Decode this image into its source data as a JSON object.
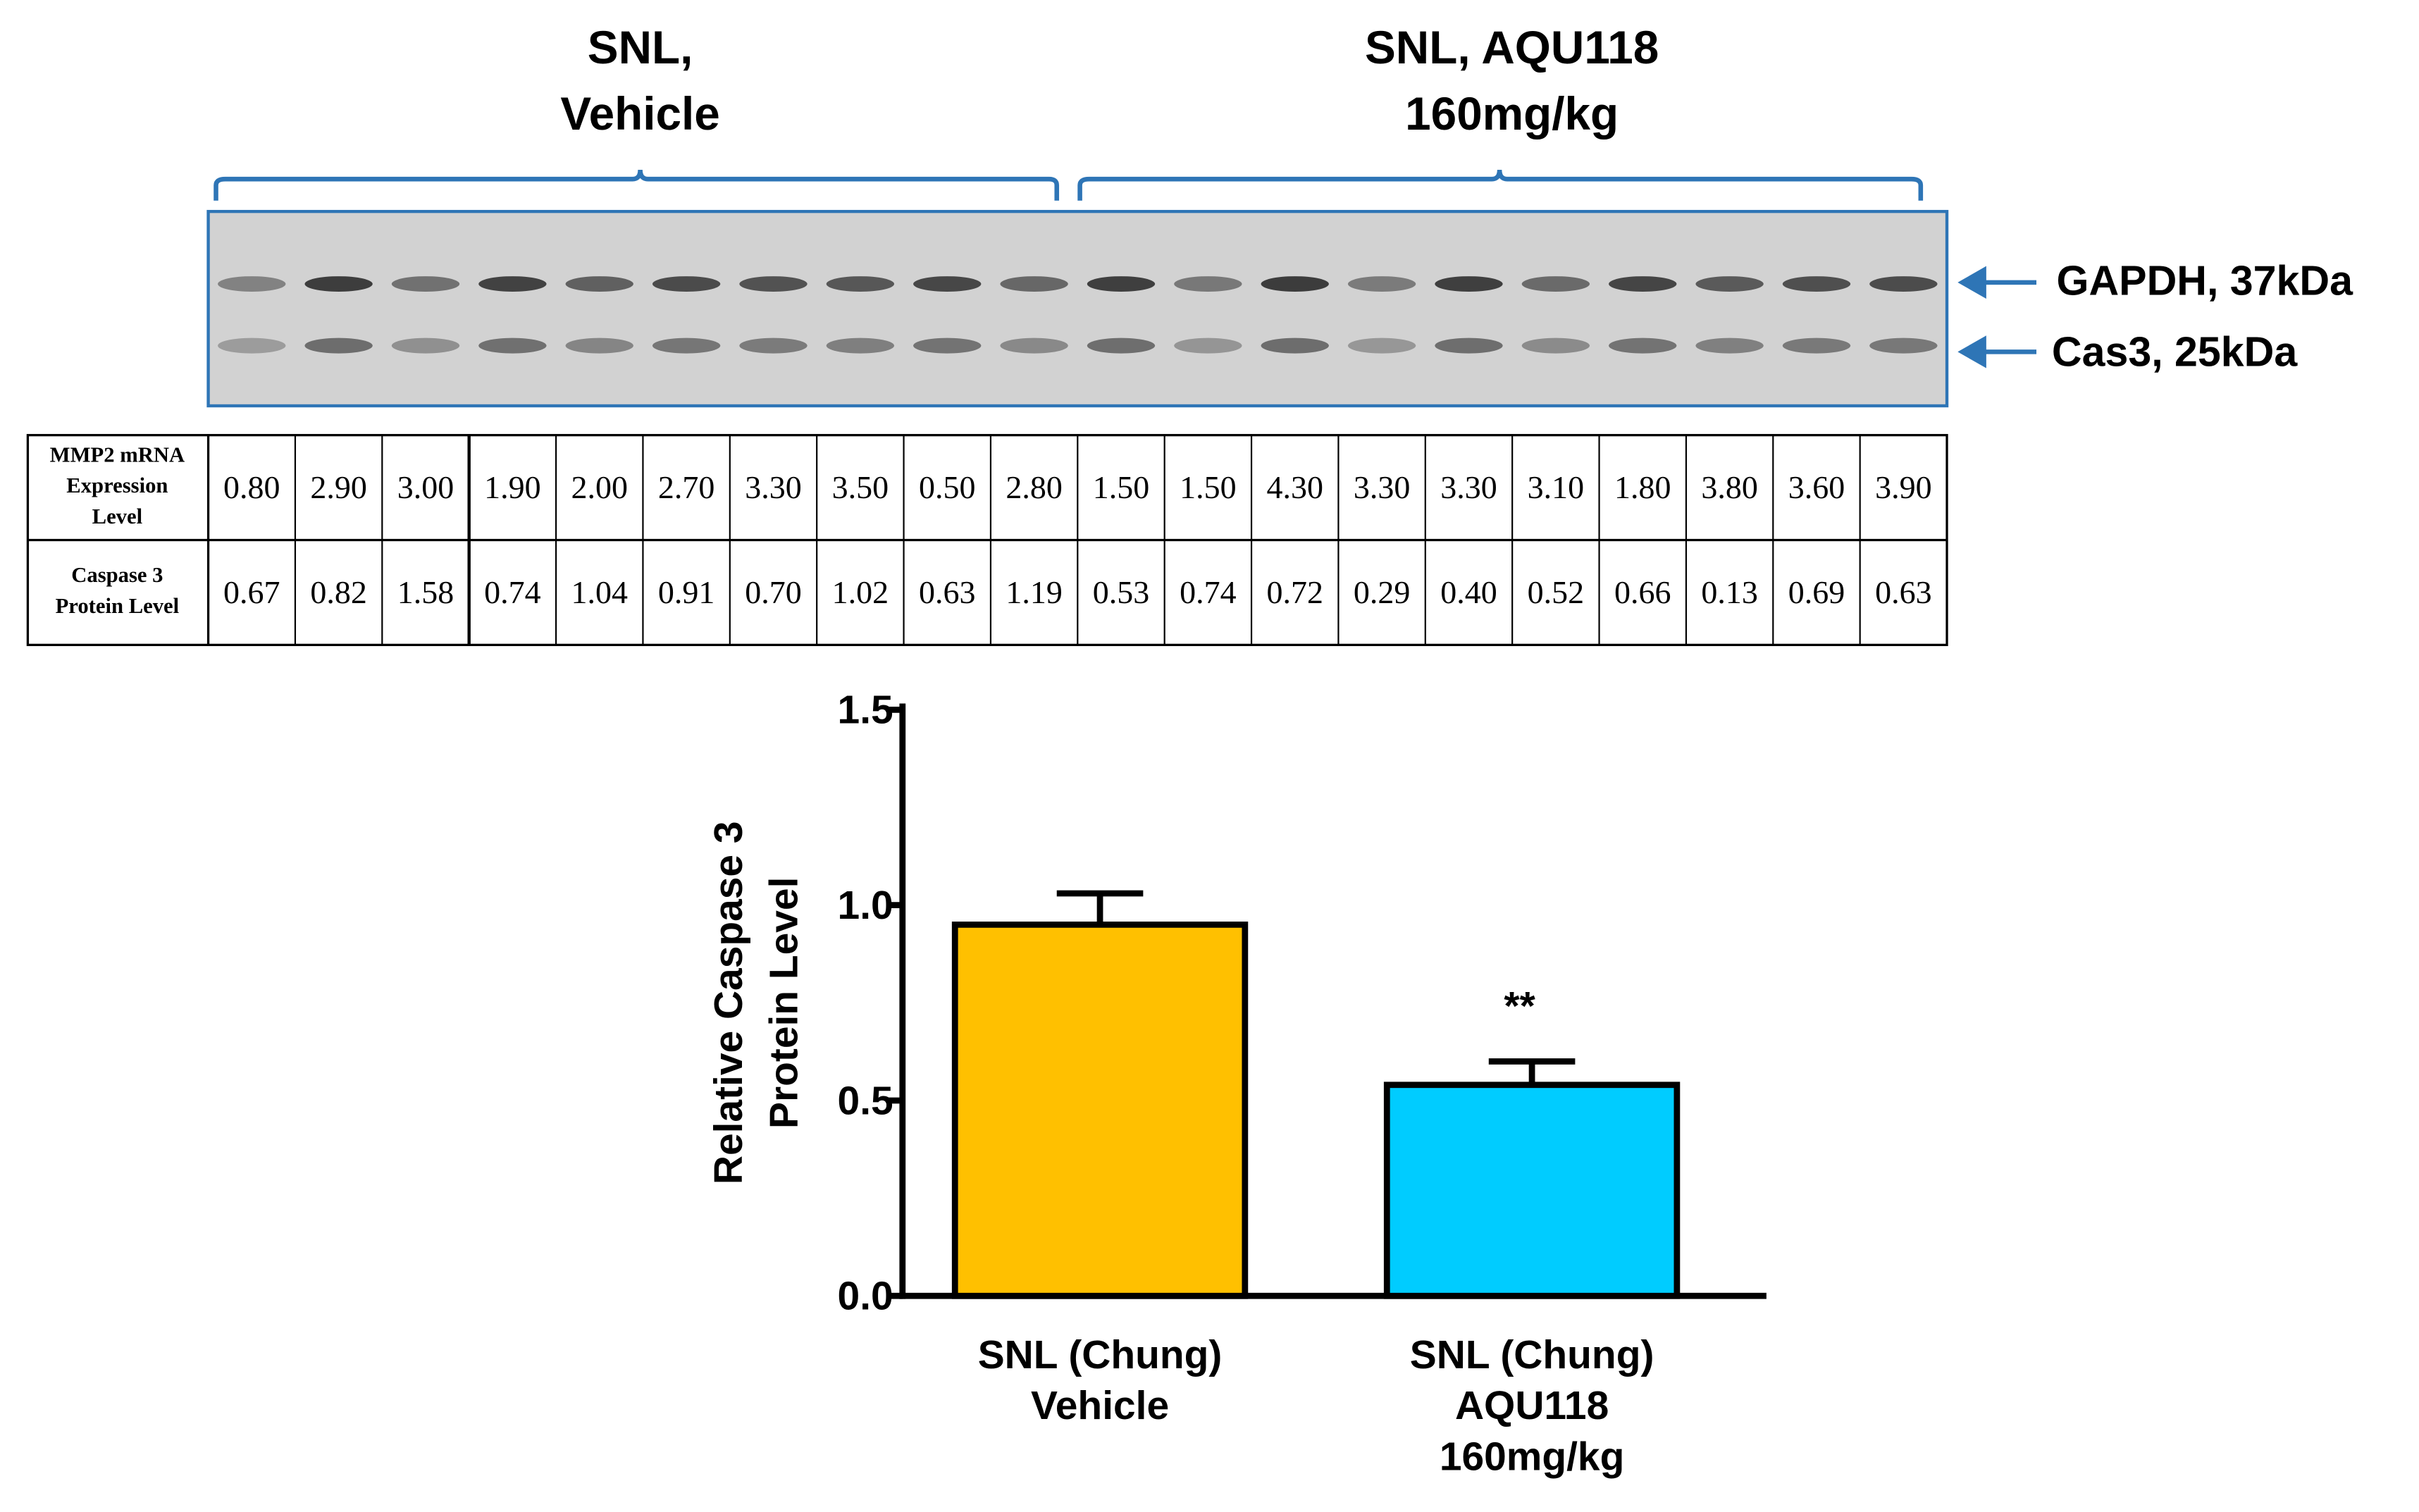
{
  "blot": {
    "groups": [
      {
        "lines": [
          "SNL,",
          "Vehicle"
        ]
      },
      {
        "lines": [
          "SNL, AQU118",
          "160mg/kg"
        ]
      }
    ],
    "bands": [
      "GAPDH, 37kDa",
      "Cas3, 25kDa"
    ]
  },
  "table": {
    "row_labels": [
      [
        "MMP2 mRNA",
        "Expression",
        "Level"
      ],
      [
        "Caspase 3",
        "Protein Level"
      ]
    ],
    "rows": [
      [
        "0.80",
        "2.90",
        "3.00",
        "1.90",
        "2.00",
        "2.70",
        "3.30",
        "3.50",
        "0.50",
        "2.80",
        "1.50",
        "1.50",
        "4.30",
        "3.30",
        "3.30",
        "3.10",
        "1.80",
        "3.80",
        "3.60",
        "3.90"
      ],
      [
        "0.67",
        "0.82",
        "1.58",
        "0.74",
        "1.04",
        "0.91",
        "0.70",
        "1.02",
        "0.63",
        "1.19",
        "0.53",
        "0.74",
        "0.72",
        "0.29",
        "0.40",
        "0.52",
        "0.66",
        "0.13",
        "0.69",
        "0.63"
      ]
    ]
  },
  "chart_data": {
    "type": "bar",
    "y_label": [
      "Relative Caspase 3",
      "Protein Level"
    ],
    "categories": [
      [
        "SNL (Chung)",
        "Vehicle"
      ],
      [
        "SNL (Chung)",
        "AQU118",
        "160mg/kg"
      ]
    ],
    "values": [
      0.95,
      0.54
    ],
    "errors": [
      0.08,
      0.06
    ],
    "colors": [
      "#ffc000",
      "#00ccff"
    ],
    "annotations": [
      null,
      "**"
    ],
    "ylim": [
      0,
      1.5
    ],
    "yticks": [
      {
        "value": 0,
        "label": "0.0"
      },
      0.5,
      {
        "value": 1,
        "label": "1.0"
      },
      1.5
    ]
  }
}
